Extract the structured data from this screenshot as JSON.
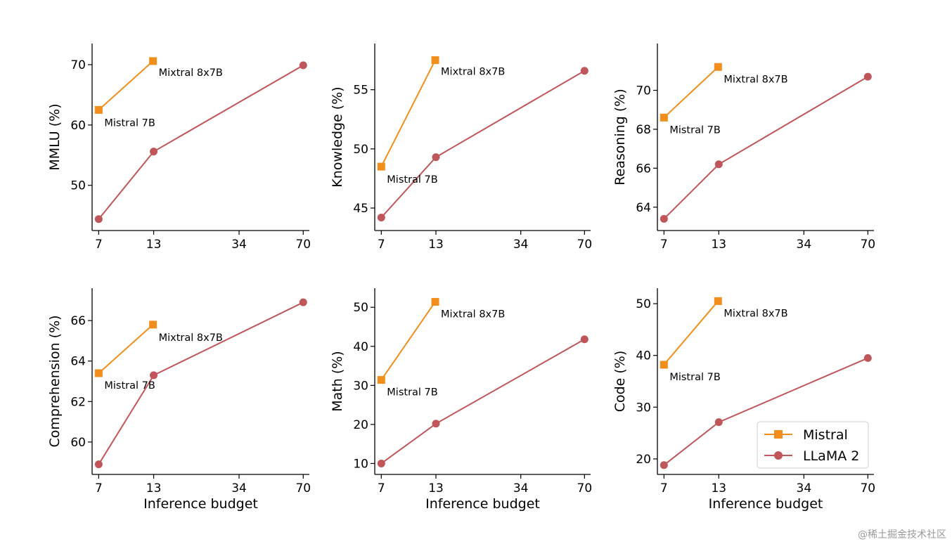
{
  "colors": {
    "mistral": "#f28e1c",
    "llama": "#c0555a",
    "axis": "#000000"
  },
  "legend": {
    "position": "lower-right of last panel",
    "entries": [
      {
        "name": "Mistral",
        "marker": "square",
        "color": "#f28e1c"
      },
      {
        "name": "LLaMA 2",
        "marker": "circle",
        "color": "#c0555a"
      }
    ]
  },
  "watermark": "@稀土掘金技术社区",
  "chart_data": [
    {
      "type": "line",
      "title": "",
      "xlabel": "",
      "ylabel": "MMLU (%)",
      "xscale": "log",
      "xticks": [
        7,
        13,
        34,
        70
      ],
      "xlim": [
        6.5,
        75
      ],
      "yticks": [
        50,
        60,
        70
      ],
      "ylim": [
        42.5,
        73.5
      ],
      "series": [
        {
          "name": "Mistral",
          "x": [
            7,
            12.9
          ],
          "y": [
            62.5,
            70.6
          ],
          "point_labels": [
            "Mistral 7B",
            "Mixtral 8x7B"
          ]
        },
        {
          "name": "LLaMA 2",
          "x": [
            7,
            13,
            70
          ],
          "y": [
            44.4,
            55.6,
            69.9
          ]
        }
      ]
    },
    {
      "type": "line",
      "title": "",
      "xlabel": "",
      "ylabel": "Knowledge (%)",
      "xscale": "log",
      "xticks": [
        7,
        13,
        34,
        70
      ],
      "xlim": [
        6.5,
        75
      ],
      "yticks": [
        45,
        50,
        55
      ],
      "ylim": [
        43.1,
        58.9
      ],
      "series": [
        {
          "name": "Mistral",
          "x": [
            7,
            12.9
          ],
          "y": [
            48.5,
            57.5
          ],
          "point_labels": [
            "Mistral 7B",
            "Mixtral 8x7B"
          ]
        },
        {
          "name": "LLaMA 2",
          "x": [
            7,
            13,
            70
          ],
          "y": [
            44.2,
            49.3,
            56.6
          ]
        }
      ]
    },
    {
      "type": "line",
      "title": "",
      "xlabel": "",
      "ylabel": "Reasoning (%)",
      "xscale": "log",
      "xticks": [
        7,
        13,
        34,
        70
      ],
      "xlim": [
        6.5,
        75
      ],
      "yticks": [
        64,
        66,
        68,
        70
      ],
      "ylim": [
        62.8,
        72.4
      ],
      "series": [
        {
          "name": "Mistral",
          "x": [
            7,
            12.9
          ],
          "y": [
            68.6,
            71.2
          ],
          "point_labels": [
            "Mistral 7B",
            "Mixtral 8x7B"
          ]
        },
        {
          "name": "LLaMA 2",
          "x": [
            7,
            13,
            70
          ],
          "y": [
            63.4,
            66.2,
            70.7
          ]
        }
      ]
    },
    {
      "type": "line",
      "title": "",
      "xlabel": "Inference budget",
      "ylabel": "Comprehension (%)",
      "xscale": "log",
      "xticks": [
        7,
        13,
        34,
        70
      ],
      "xlim": [
        6.5,
        75
      ],
      "yticks": [
        60,
        62,
        64,
        66
      ],
      "ylim": [
        58.4,
        67.6
      ],
      "series": [
        {
          "name": "Mistral",
          "x": [
            7,
            12.9
          ],
          "y": [
            63.4,
            65.8
          ],
          "point_labels": [
            "Mistral 7B",
            "Mixtral 8x7B"
          ]
        },
        {
          "name": "LLaMA 2",
          "x": [
            7,
            13,
            70
          ],
          "y": [
            58.9,
            63.3,
            66.9
          ]
        }
      ]
    },
    {
      "type": "line",
      "title": "",
      "xlabel": "Inference budget",
      "ylabel": "Math (%)",
      "xscale": "log",
      "xticks": [
        7,
        13,
        34,
        70
      ],
      "xlim": [
        6.5,
        75
      ],
      "yticks": [
        10,
        20,
        30,
        40,
        50
      ],
      "ylim": [
        7.2,
        54.9
      ],
      "series": [
        {
          "name": "Mistral",
          "x": [
            7,
            12.9
          ],
          "y": [
            31.4,
            51.4
          ],
          "point_labels": [
            "Mistral 7B",
            "Mixtral 8x7B"
          ]
        },
        {
          "name": "LLaMA 2",
          "x": [
            7,
            13,
            70
          ],
          "y": [
            10.0,
            20.2,
            41.8
          ]
        }
      ]
    },
    {
      "type": "line",
      "title": "",
      "xlabel": "Inference budget",
      "ylabel": "Code (%)",
      "xscale": "log",
      "xticks": [
        7,
        13,
        34,
        70
      ],
      "xlim": [
        6.5,
        75
      ],
      "yticks": [
        20,
        30,
        40,
        50
      ],
      "ylim": [
        17.0,
        53.0
      ],
      "series": [
        {
          "name": "Mistral",
          "x": [
            7,
            12.9
          ],
          "y": [
            38.2,
            50.5
          ],
          "point_labels": [
            "Mistral 7B",
            "Mixtral 8x7B"
          ]
        },
        {
          "name": "LLaMA 2",
          "x": [
            7,
            13,
            70
          ],
          "y": [
            18.8,
            27.1,
            39.5
          ]
        }
      ]
    }
  ]
}
